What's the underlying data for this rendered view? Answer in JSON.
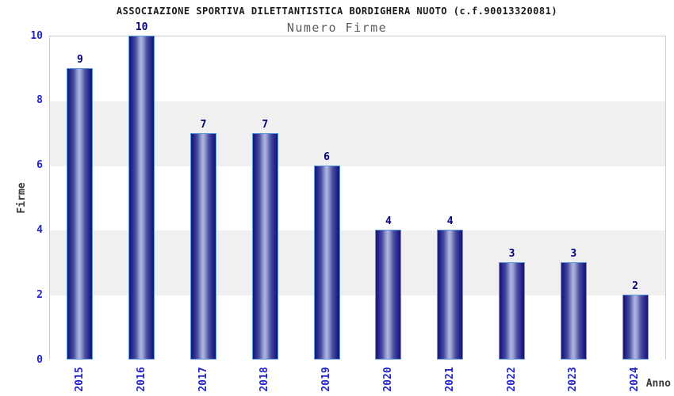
{
  "chart_data": {
    "type": "bar",
    "title": "ASSOCIAZIONE SPORTIVA DILETTANTISTICA BORDIGHERA NUOTO (c.f.90013320081)",
    "subtitle": "Numero Firme",
    "xlabel": "Anno",
    "ylabel": "Firme",
    "categories": [
      "2015",
      "2016",
      "2017",
      "2018",
      "2019",
      "2020",
      "2021",
      "2022",
      "2023",
      "2024"
    ],
    "values": [
      9,
      10,
      7,
      7,
      6,
      4,
      4,
      3,
      3,
      2
    ],
    "ylim": [
      0,
      10
    ],
    "yticks": [
      0,
      2,
      4,
      6,
      8,
      10
    ],
    "grid": "alternating-horizontal-bands",
    "legend_position": "none",
    "bar_labels_shown": true
  },
  "colors": {
    "background": "#ffffff",
    "title_text": "#1a1a1a",
    "subtitle_text": "#5a5a5a",
    "axis_tick_text": "#2424cd",
    "bar_value_text": "#00007a",
    "axis_name_text": "#3a3a3a",
    "plot_border": "#cdcdcd",
    "band_gray": "#f0f0f0",
    "band_white": "#ffffff",
    "bar_border": "#5b9ce0",
    "bar_gradient_edge": "#181875",
    "bar_gradient_mid": "#b0b5dd"
  }
}
